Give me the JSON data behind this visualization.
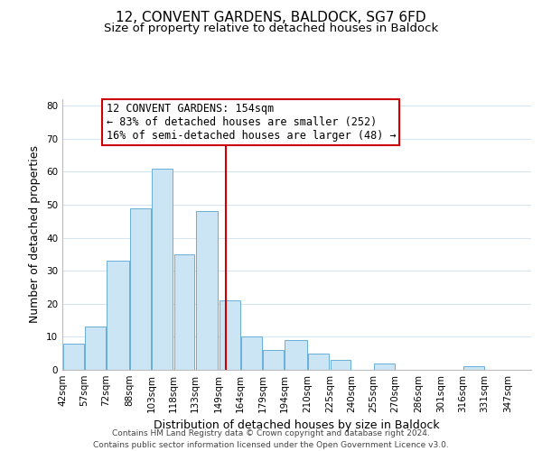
{
  "title": "12, CONVENT GARDENS, BALDOCK, SG7 6FD",
  "subtitle": "Size of property relative to detached houses in Baldock",
  "xlabel": "Distribution of detached houses by size in Baldock",
  "ylabel": "Number of detached properties",
  "bar_left_edges": [
    42,
    57,
    72,
    88,
    103,
    118,
    133,
    149,
    164,
    179,
    194,
    210,
    225,
    240,
    255,
    270,
    286,
    301,
    316,
    331
  ],
  "bar_widths": [
    15,
    15,
    16,
    15,
    15,
    15,
    16,
    15,
    15,
    15,
    16,
    15,
    15,
    15,
    15,
    16,
    15,
    15,
    15,
    16
  ],
  "bar_heights": [
    8,
    13,
    33,
    49,
    61,
    35,
    48,
    21,
    10,
    6,
    9,
    5,
    3,
    0,
    2,
    0,
    0,
    0,
    1,
    0
  ],
  "tick_labels": [
    "42sqm",
    "57sqm",
    "72sqm",
    "88sqm",
    "103sqm",
    "118sqm",
    "133sqm",
    "149sqm",
    "164sqm",
    "179sqm",
    "194sqm",
    "210sqm",
    "225sqm",
    "240sqm",
    "255sqm",
    "270sqm",
    "286sqm",
    "301sqm",
    "316sqm",
    "331sqm",
    "347sqm"
  ],
  "bar_color": "#cce5f5",
  "bar_edge_color": "#6aaed6",
  "vline_x": 154,
  "vline_color": "#cc0000",
  "annotation_text_line1": "12 CONVENT GARDENS: 154sqm",
  "annotation_text_line2": "← 83% of detached houses are smaller (252)",
  "annotation_text_line3": "16% of semi-detached houses are larger (48) →",
  "annotation_box_color": "#cc0000",
  "ylim": [
    0,
    82
  ],
  "yticks": [
    0,
    10,
    20,
    30,
    40,
    50,
    60,
    70,
    80
  ],
  "grid_color": "#d8e4f0",
  "background_color": "#ffffff",
  "footer_line1": "Contains HM Land Registry data © Crown copyright and database right 2024.",
  "footer_line2": "Contains public sector information licensed under the Open Government Licence v3.0.",
  "title_fontsize": 11,
  "subtitle_fontsize": 9.5,
  "axis_label_fontsize": 9,
  "tick_fontsize": 7.5,
  "annotation_fontsize": 8.5,
  "footer_fontsize": 6.5
}
